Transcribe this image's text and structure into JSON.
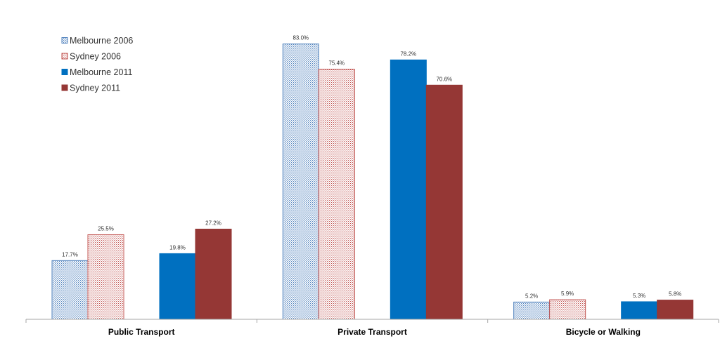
{
  "chart_data": {
    "type": "bar",
    "title": "",
    "xlabel": "",
    "ylabel": "",
    "categories": [
      "Public Transport",
      "Private Transport",
      "Bicycle or Walking"
    ],
    "ylim": [
      0,
      90
    ],
    "grid": false,
    "legend_position": "top-left",
    "series": [
      {
        "name": "Melbourne 2006",
        "values": [
          17.7,
          83.0,
          5.2
        ],
        "labels": [
          "17.7%",
          "83.0%",
          "5.2%"
        ],
        "color": "#4f81bd",
        "pattern": "dotted"
      },
      {
        "name": "Sydney 2006",
        "values": [
          25.5,
          75.4,
          5.9
        ],
        "labels": [
          "25.5%",
          "75.4%",
          "5.9%"
        ],
        "color": "#c0504d",
        "pattern": "hatched"
      },
      {
        "name": "Melbourne 2011",
        "values": [
          19.8,
          78.2,
          5.3
        ],
        "labels": [
          "19.8%",
          "78.2%",
          "5.3%"
        ],
        "color": "#0070c0",
        "pattern": "solid"
      },
      {
        "name": "Sydney 2011",
        "values": [
          27.2,
          70.6,
          5.8
        ],
        "labels": [
          "27.2%",
          "70.6%",
          "5.8%"
        ],
        "color": "#953735",
        "pattern": "solid"
      }
    ]
  }
}
